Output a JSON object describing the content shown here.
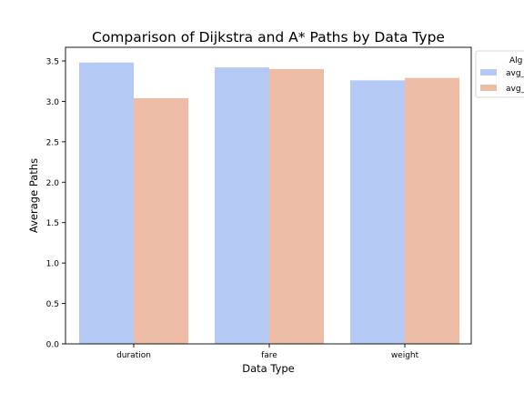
{
  "chart_data": {
    "type": "bar",
    "title": "Comparison of Dijkstra and A* Paths by Data Type",
    "xlabel": "Data Type",
    "ylabel": "Average Paths",
    "categories": [
      "duration",
      "fare",
      "weight"
    ],
    "series": [
      {
        "name": "avg_",
        "values": [
          3.48,
          3.42,
          3.26
        ],
        "color": "#b5c9f5"
      },
      {
        "name": "avg_",
        "values": [
          3.04,
          3.4,
          3.29
        ],
        "color": "#ecbca6"
      }
    ],
    "ylim": [
      0,
      3.65
    ],
    "yticks": [
      "0.0",
      "0.5",
      "1.0",
      "1.5",
      "2.0",
      "2.5",
      "3.0",
      "3.5"
    ],
    "grid": false,
    "legend": {
      "title": "Alg",
      "placement": "top-right-outside"
    }
  }
}
